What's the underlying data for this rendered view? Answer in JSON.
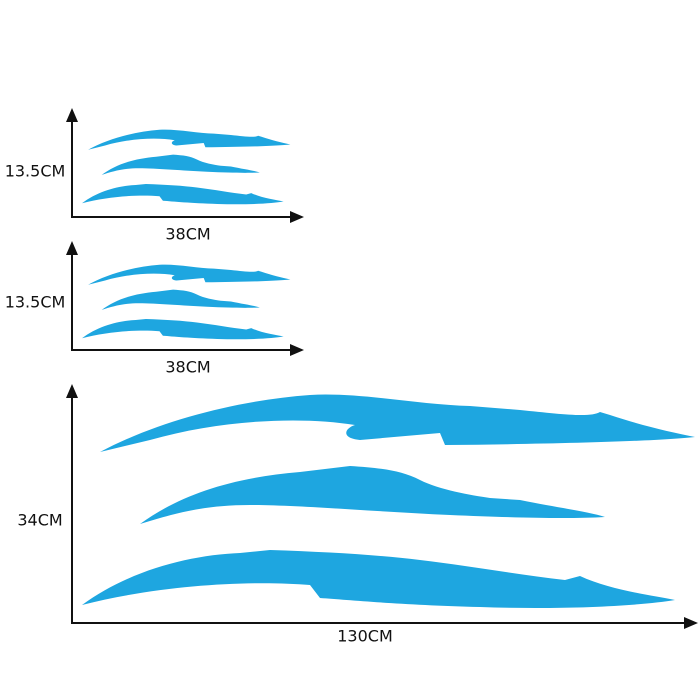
{
  "panels": [
    {
      "height": "13.5CM",
      "width": "38CM"
    },
    {
      "height": "13.5CM",
      "width": "38CM"
    },
    {
      "height": "34CM",
      "width": "130CM"
    }
  ]
}
